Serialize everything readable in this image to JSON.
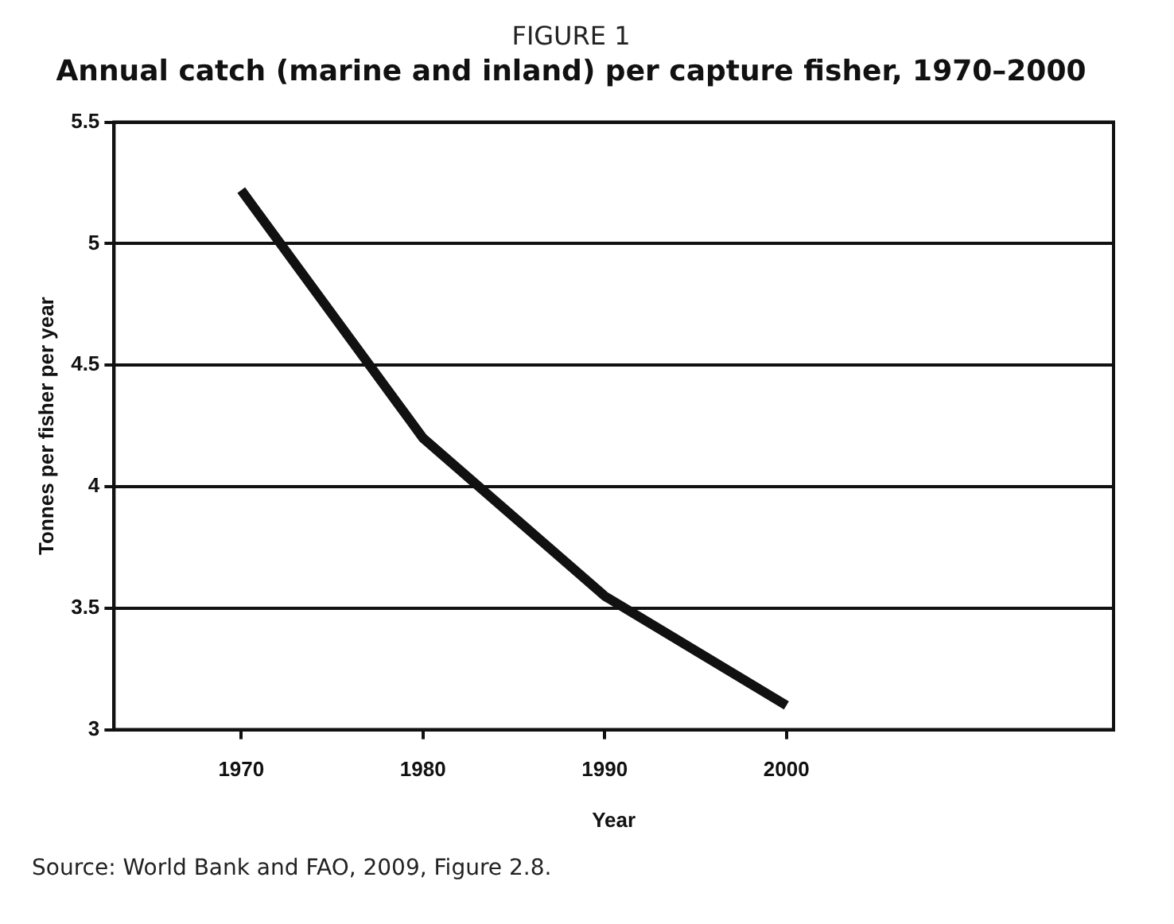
{
  "chart_data": {
    "type": "line",
    "title": "FIGURE 1",
    "subtitle": "Annual catch (marine and inland) per capture fisher, 1970–2000",
    "xlabel": "Year",
    "ylabel": "Tonnes per fisher per year",
    "x": [
      1970,
      1980,
      1990,
      2000
    ],
    "series": [
      {
        "color": "#111111",
        "values": [
          5.22,
          4.2,
          3.55,
          3.1
        ]
      }
    ],
    "xlim": [
      1963,
      2018
    ],
    "xticks": [
      1970,
      1980,
      1990,
      2000
    ],
    "ylim": [
      3,
      5.5
    ],
    "yticks": [
      3,
      3.5,
      4,
      4.5,
      5,
      5.5
    ],
    "grid": "y",
    "legend": false,
    "marker": "none",
    "line_style": "solid",
    "annotations": [
      "Source: World Bank and FAO, 2009, Figure 2.8."
    ]
  }
}
